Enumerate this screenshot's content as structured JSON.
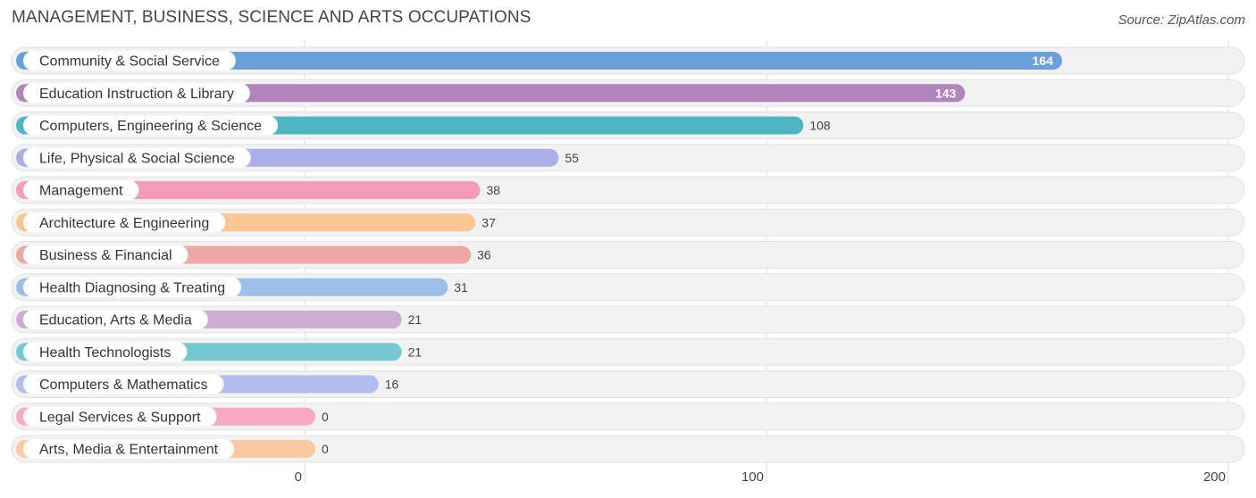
{
  "chart_data": {
    "type": "bar",
    "orientation": "horizontal",
    "title": "MANAGEMENT, BUSINESS, SCIENCE AND ARTS OCCUPATIONS",
    "source": "Source: ZipAtlas.com",
    "categories": [
      "Community & Social Service",
      "Education Instruction & Library",
      "Computers, Engineering & Science",
      "Life, Physical & Social Science",
      "Management",
      "Architecture & Engineering",
      "Business & Financial",
      "Health Diagnosing & Treating",
      "Education, Arts & Media",
      "Health Technologists",
      "Computers & Mathematics",
      "Legal Services & Support",
      "Arts, Media & Entertainment"
    ],
    "values": [
      164,
      143,
      108,
      55,
      38,
      37,
      36,
      31,
      21,
      21,
      16,
      0,
      0
    ],
    "colors": [
      "#6a9fdc",
      "#b185bb",
      "#4fb5c4",
      "#a9b0e8",
      "#f59ab8",
      "#fbc692",
      "#eea7a5",
      "#9cbfe9",
      "#cbaed2",
      "#74c8d1",
      "#b3bcee",
      "#f7a9c4",
      "#fbc9a0"
    ],
    "xticks": [
      0,
      100,
      200
    ],
    "xlim": [
      0,
      200
    ],
    "grid": true,
    "legend": "none"
  }
}
